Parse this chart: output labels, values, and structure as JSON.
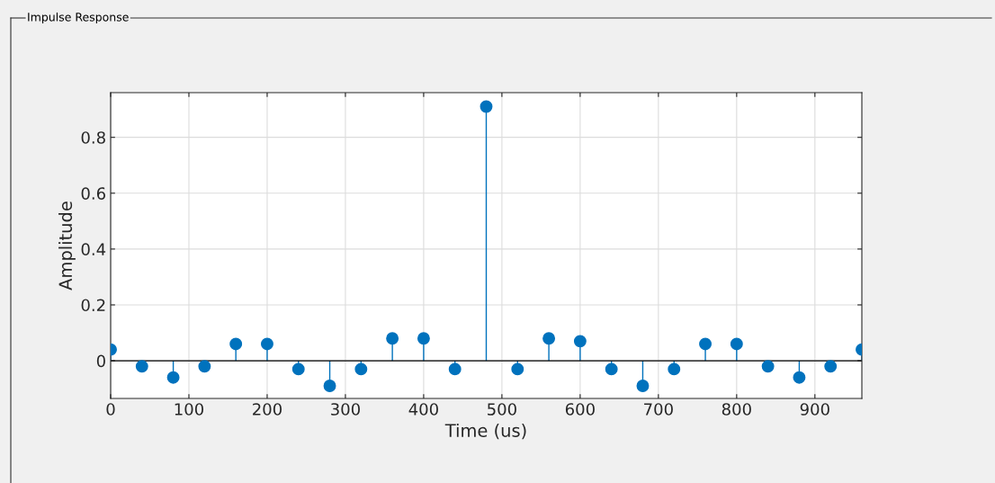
{
  "chart_data": {
    "type": "lollipop",
    "title": "Impulse Response",
    "xlabel": "Time (us)",
    "ylabel": "Amplitude",
    "x": [
      0,
      40,
      80,
      120,
      160,
      200,
      240,
      280,
      320,
      360,
      400,
      440,
      480,
      520,
      560,
      600,
      640,
      680,
      720,
      760,
      800,
      840,
      880,
      920,
      960
    ],
    "series": [
      {
        "color": "#0072bd",
        "values": [
          0.04,
          -0.02,
          -0.06,
          -0.02,
          0.06,
          0.06,
          -0.03,
          -0.09,
          -0.03,
          0.08,
          0.08,
          -0.03,
          0.91,
          -0.03,
          0.08,
          0.07,
          -0.03,
          -0.09,
          -0.03,
          0.06,
          0.06,
          -0.02,
          -0.06,
          -0.02,
          0.04
        ]
      }
    ],
    "xlim": [
      0,
      960
    ],
    "ylim": [
      -0.135,
      0.96
    ],
    "xticks": [
      0,
      100,
      200,
      300,
      400,
      500,
      600,
      700,
      800,
      900
    ],
    "yticks": [
      0,
      0.2,
      0.4,
      0.6,
      0.8
    ],
    "grid": true,
    "marker": "circle"
  }
}
